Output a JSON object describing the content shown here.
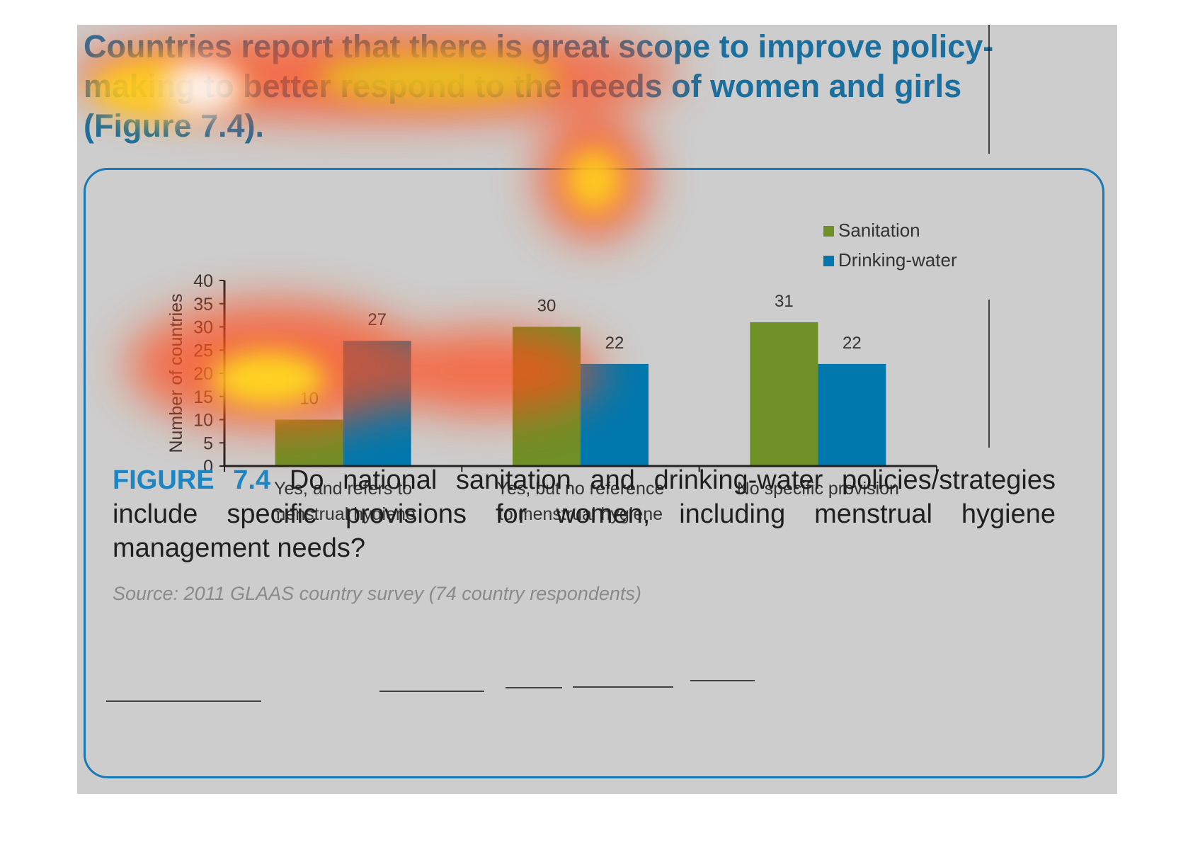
{
  "heading": "Countries report that there is great scope to improve policy-making to better respond to the needs of women and girls (Figure 7.4).",
  "caption": {
    "label": "FIGURE 7.4",
    "text": "Do national sanitation and drinking-water policies/strategies include specific provisions for women, including menstrual hygiene management needs?"
  },
  "source": "Source: 2011 GLAAS country survey (74 country respondents)",
  "colors": {
    "sanitation": "#6f8f27",
    "drinking_water": "#0078ae",
    "frame": "#1a7ab8",
    "heading": "#1a6f9e",
    "caption_label": "#1b86c3"
  },
  "chart_data": {
    "type": "bar",
    "title": "",
    "xlabel": "",
    "ylabel": "Number of countries",
    "ylim": [
      0,
      40
    ],
    "yticks": [
      0,
      5,
      10,
      15,
      20,
      25,
      30,
      35,
      40
    ],
    "categories": [
      [
        "Yes, and refers to",
        "menstrual hygiene"
      ],
      [
        "Yes, but no reference",
        "to menstrual hygiene"
      ],
      [
        "No specific provision"
      ]
    ],
    "series": [
      {
        "name": "Sanitation",
        "values": [
          10,
          30,
          31
        ]
      },
      {
        "name": "Drinking-water",
        "values": [
          27,
          22,
          22
        ]
      }
    ],
    "legend": "top-right",
    "grid": false
  }
}
